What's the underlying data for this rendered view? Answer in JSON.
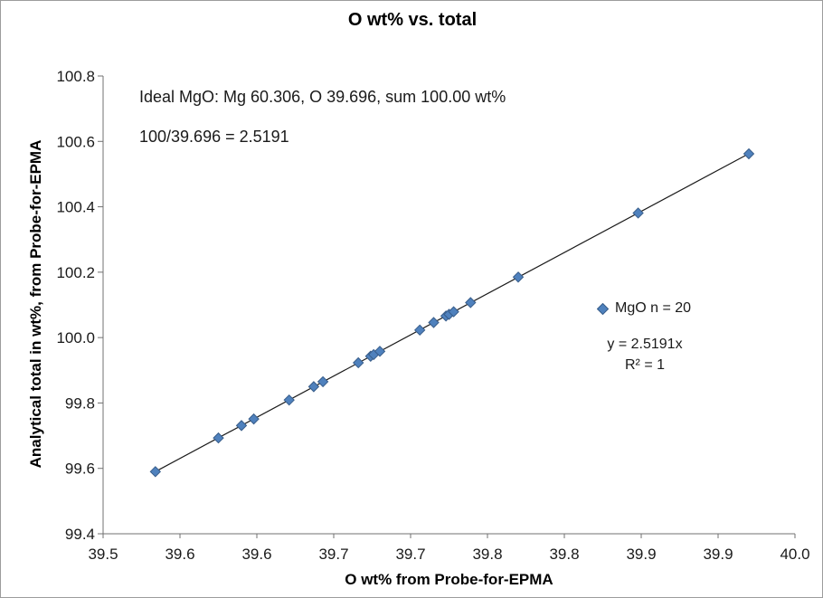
{
  "chart": {
    "title": "O wt% vs. total",
    "annotations": {
      "line1": "Ideal MgO: Mg 60.306, O 39.696, sum 100.00 wt%",
      "line2": "100/39.696 = 2.5191"
    },
    "legend": {
      "series_label": "MgO n = 20"
    },
    "trendline_label": {
      "equation": "y = 2.5191x",
      "r_squared": "R² = 1"
    },
    "x_axis": {
      "title": "O wt% from Probe-for-EPMA"
    },
    "y_axis": {
      "title": "Analytical total in wt%, from Probe-for-EPMA"
    },
    "colors": {
      "marker_fill": "#4f81bd",
      "marker_stroke": "#385d8a",
      "trendline": "#1a1a1a",
      "axis_line": "#707070"
    }
  },
  "chart_data": {
    "type": "scatter",
    "title": "O wt% vs. total",
    "xlabel": "O wt% from Probe-for-EPMA",
    "ylabel": "Analytical total in wt%, from Probe-for-EPMA",
    "xlim": [
      39.5,
      39.95
    ],
    "ylim": [
      99.4,
      100.8
    ],
    "x_tick_values": [
      39.5,
      39.55,
      39.6,
      39.65,
      39.7,
      39.75,
      39.8,
      39.85,
      39.9,
      39.95
    ],
    "x_tick_labels": [
      "39.5",
      "39.6",
      "39.6",
      "39.7",
      "39.7",
      "39.8",
      "39.8",
      "39.9",
      "39.9",
      "40.0"
    ],
    "y_tick_values": [
      99.4,
      99.6,
      99.8,
      100.0,
      100.2,
      100.4,
      100.6,
      100.8
    ],
    "y_tick_labels": [
      "99.4",
      "99.6",
      "99.8",
      "100.0",
      "100.2",
      "100.4",
      "100.6",
      "100.8"
    ],
    "grid": false,
    "legend_position": "center-right",
    "series": [
      {
        "name": "MgO n = 20",
        "marker": "diamond",
        "n": 20,
        "points": [
          [
            39.534,
            99.59
          ],
          [
            39.575,
            99.693
          ],
          [
            39.59,
            99.731
          ],
          [
            39.598,
            99.751
          ],
          [
            39.621,
            99.809
          ],
          [
            39.637,
            99.85
          ],
          [
            39.643,
            99.865
          ],
          [
            39.666,
            99.923
          ],
          [
            39.674,
            99.943
          ],
          [
            39.676,
            99.948
          ],
          [
            39.68,
            99.958
          ],
          [
            39.706,
            100.023
          ],
          [
            39.715,
            100.046
          ],
          [
            39.723,
            100.066
          ],
          [
            39.725,
            100.071
          ],
          [
            39.728,
            100.079
          ],
          [
            39.739,
            100.107
          ],
          [
            39.77,
            100.185
          ],
          [
            39.848,
            100.381
          ],
          [
            39.92,
            100.562
          ]
        ]
      }
    ],
    "trendline": {
      "equation": "y = 2.5191x",
      "slope": 2.5191,
      "intercept": 0,
      "r_squared": 1,
      "x_range": [
        39.534,
        39.92
      ]
    }
  }
}
